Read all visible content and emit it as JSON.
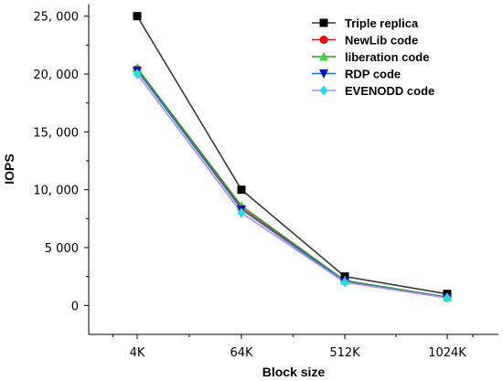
{
  "chart_data": {
    "type": "line",
    "categories": [
      "4K",
      "64K",
      "512K",
      "1024K"
    ],
    "xlabel": "Block size",
    "ylabel": "IOPS",
    "ylim": [
      -2500,
      26000
    ],
    "yticks": [
      0,
      5000,
      10000,
      15000,
      20000,
      25000
    ],
    "ytick_labels": [
      "0",
      "5 000",
      "10, 000",
      "15, 000",
      "20, 000",
      "25, 000"
    ],
    "grid": false,
    "legend_position": "top-right",
    "series": [
      {
        "name": "Triple replica",
        "values": [
          25000,
          10000,
          2500,
          1000
        ],
        "color": "#3a3a3a",
        "marker_color": "#000000",
        "marker": "square"
      },
      {
        "name": "NewLib code",
        "values": [
          20400,
          8400,
          2100,
          700
        ],
        "color": "#ff0000",
        "marker_color": "#ff0000",
        "marker": "circle"
      },
      {
        "name": "liberation code",
        "values": [
          20500,
          8600,
          2150,
          720
        ],
        "color": "#2e9a2e",
        "marker_color": "#3cd83c",
        "marker": "triangle-up"
      },
      {
        "name": "RDP code",
        "values": [
          20300,
          8300,
          2050,
          680
        ],
        "color": "#1f7fd6",
        "marker_color": "#1010c8",
        "marker": "triangle-down"
      },
      {
        "name": "EVENODD code",
        "values": [
          20000,
          8000,
          2000,
          650
        ],
        "color": "#b48ae8",
        "marker_color": "#19e1f0",
        "marker": "diamond"
      }
    ]
  }
}
